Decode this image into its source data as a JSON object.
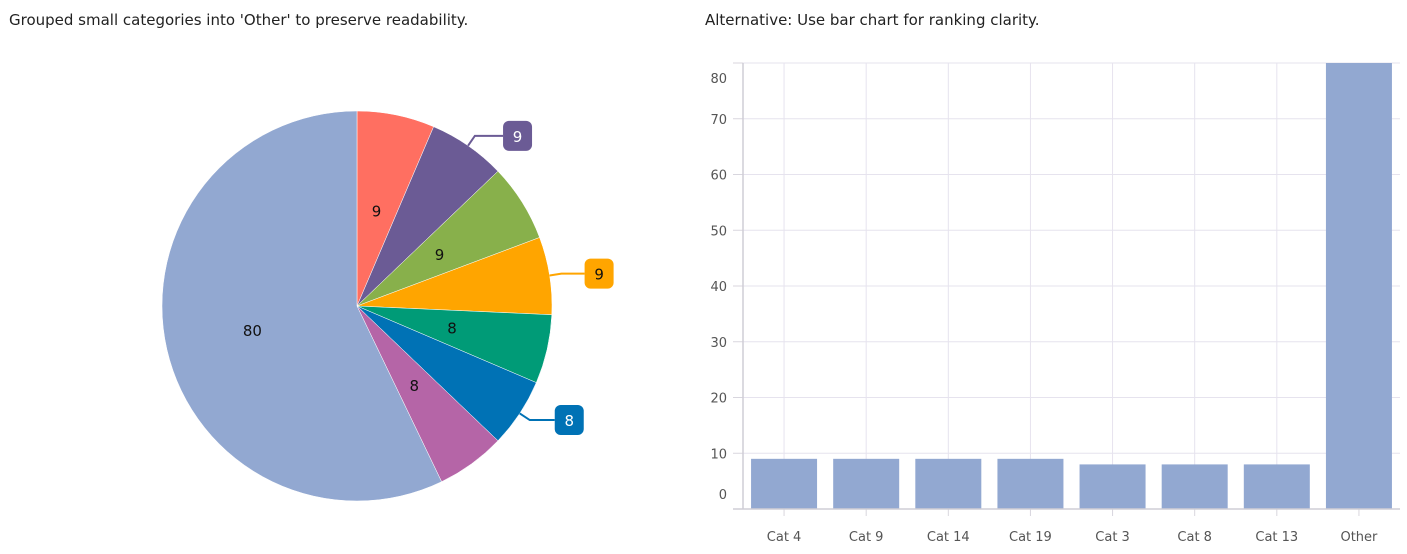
{
  "chart_data": [
    {
      "type": "pie",
      "title": "Grouped small categories into 'Other' to preserve readability.",
      "slices": [
        {
          "value": 9,
          "color": "#ff6f61",
          "label_position": "inside"
        },
        {
          "value": 9,
          "color": "#6b5b95",
          "label_position": "outside"
        },
        {
          "value": 9,
          "color": "#88b04b",
          "label_position": "inside"
        },
        {
          "value": 9,
          "color": "#ffa500",
          "label_position": "outside"
        },
        {
          "value": 8,
          "color": "#009b77",
          "label_position": "inside"
        },
        {
          "value": 8,
          "color": "#0072b5",
          "label_position": "outside"
        },
        {
          "value": 8,
          "color": "#b565a7",
          "label_position": "inside"
        },
        {
          "value": 80,
          "color": "#92a8d1",
          "label_position": "inside"
        }
      ]
    },
    {
      "type": "bar",
      "title": "Alternative: Use bar chart for ranking clarity.",
      "categories": [
        "Cat 4",
        "Cat 9",
        "Cat 14",
        "Cat 19",
        "Cat 3",
        "Cat 8",
        "Cat 13",
        "Other"
      ],
      "values": [
        9,
        9,
        9,
        9,
        8,
        8,
        8,
        80
      ],
      "ylim": [
        0,
        80
      ],
      "yticks": [
        0,
        10,
        20,
        30,
        40,
        50,
        60,
        70,
        80
      ],
      "bar_color": "#92a8d1",
      "grid": true,
      "xlabel": "",
      "ylabel": ""
    }
  ]
}
